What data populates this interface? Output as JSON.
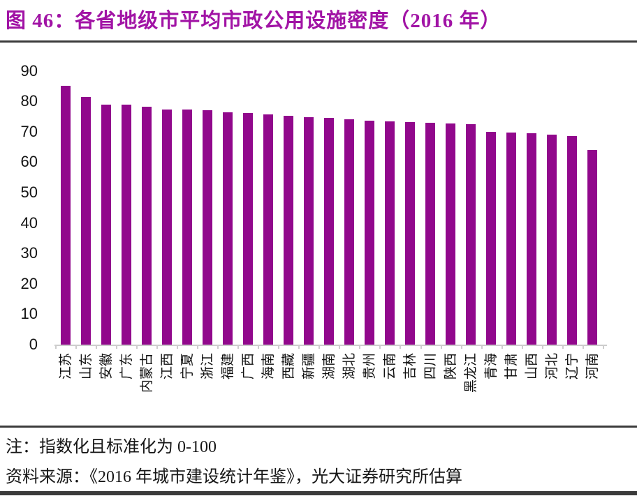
{
  "title": "图 46：各省地级市平均市政公用设施密度（2016 年）",
  "note": "注：指数化且标准化为 0-100",
  "source": "资料来源：《2016 年城市建设统计年鉴》，光大证券研究所估算",
  "colors": {
    "bar": "#91088C",
    "title_text": "#A113A5",
    "rule": "#3B3B3B",
    "axis": "#CDCDCD",
    "text": "#141414"
  },
  "chart_data": {
    "type": "bar",
    "title": "各省地级市平均市政公用设施密度（2016 年）",
    "categories": [
      "江苏",
      "山东",
      "安徽",
      "广东",
      "内蒙古",
      "江西",
      "宁夏",
      "浙江",
      "福建",
      "广西",
      "海南",
      "西藏",
      "新疆",
      "湖南",
      "湖北",
      "贵州",
      "云南",
      "吉林",
      "四川",
      "陕西",
      "黑龙江",
      "青海",
      "甘肃",
      "山西",
      "河北",
      "辽宁",
      "河南"
    ],
    "values": [
      85.2,
      81.5,
      79.0,
      78.8,
      78.3,
      77.4,
      77.2,
      77.0,
      76.4,
      76.2,
      75.8,
      75.2,
      74.8,
      74.5,
      74.0,
      73.7,
      73.5,
      73.2,
      73.0,
      72.8,
      72.4,
      70.0,
      69.7,
      69.5,
      69.0,
      68.5,
      64.0
    ],
    "xlabel": "",
    "ylabel": "",
    "ylim": [
      0,
      90
    ],
    "yticks": [
      0,
      10,
      20,
      30,
      40,
      50,
      60,
      70,
      80,
      90
    ],
    "grid": false,
    "legend": null,
    "bar_orientation": "vertical",
    "x_tick_label_rotation_deg": -90
  }
}
